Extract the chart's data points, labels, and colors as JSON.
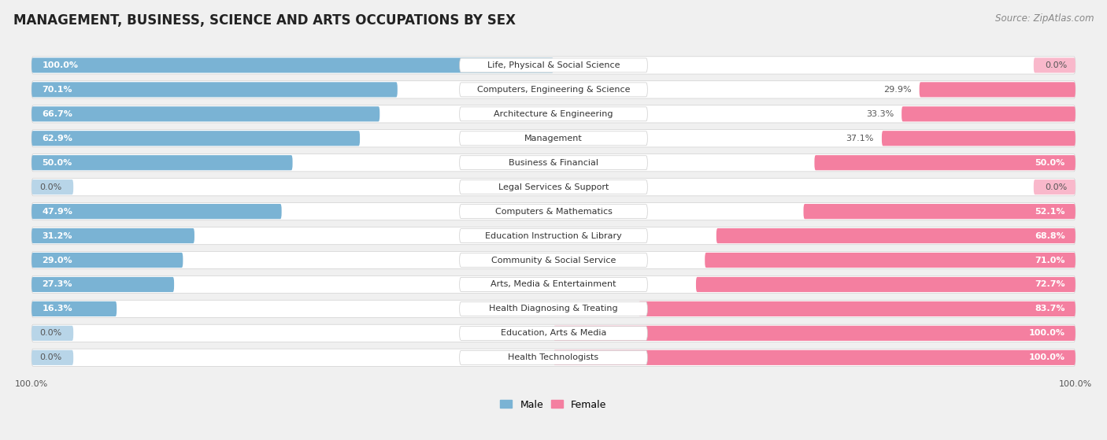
{
  "title": "MANAGEMENT, BUSINESS, SCIENCE AND ARTS OCCUPATIONS BY SEX",
  "source": "Source: ZipAtlas.com",
  "categories": [
    "Life, Physical & Social Science",
    "Computers, Engineering & Science",
    "Architecture & Engineering",
    "Management",
    "Business & Financial",
    "Legal Services & Support",
    "Computers & Mathematics",
    "Education Instruction & Library",
    "Community & Social Service",
    "Arts, Media & Entertainment",
    "Health Diagnosing & Treating",
    "Education, Arts & Media",
    "Health Technologists"
  ],
  "male": [
    100.0,
    70.1,
    66.7,
    62.9,
    50.0,
    0.0,
    47.9,
    31.2,
    29.0,
    27.3,
    16.3,
    0.0,
    0.0
  ],
  "female": [
    0.0,
    29.9,
    33.3,
    37.1,
    50.0,
    0.0,
    52.1,
    68.8,
    71.0,
    72.7,
    83.7,
    100.0,
    100.0
  ],
  "male_color": "#7ab3d4",
  "female_color": "#f47fa0",
  "male_color_light": "#b8d5e8",
  "female_color_light": "#f9b8cb",
  "background_color": "#f0f0f0",
  "row_bg_color": "#e0e0e0",
  "label_box_color": "#ffffff",
  "title_fontsize": 12,
  "label_fontsize": 8,
  "pct_fontsize": 8,
  "source_fontsize": 8.5
}
